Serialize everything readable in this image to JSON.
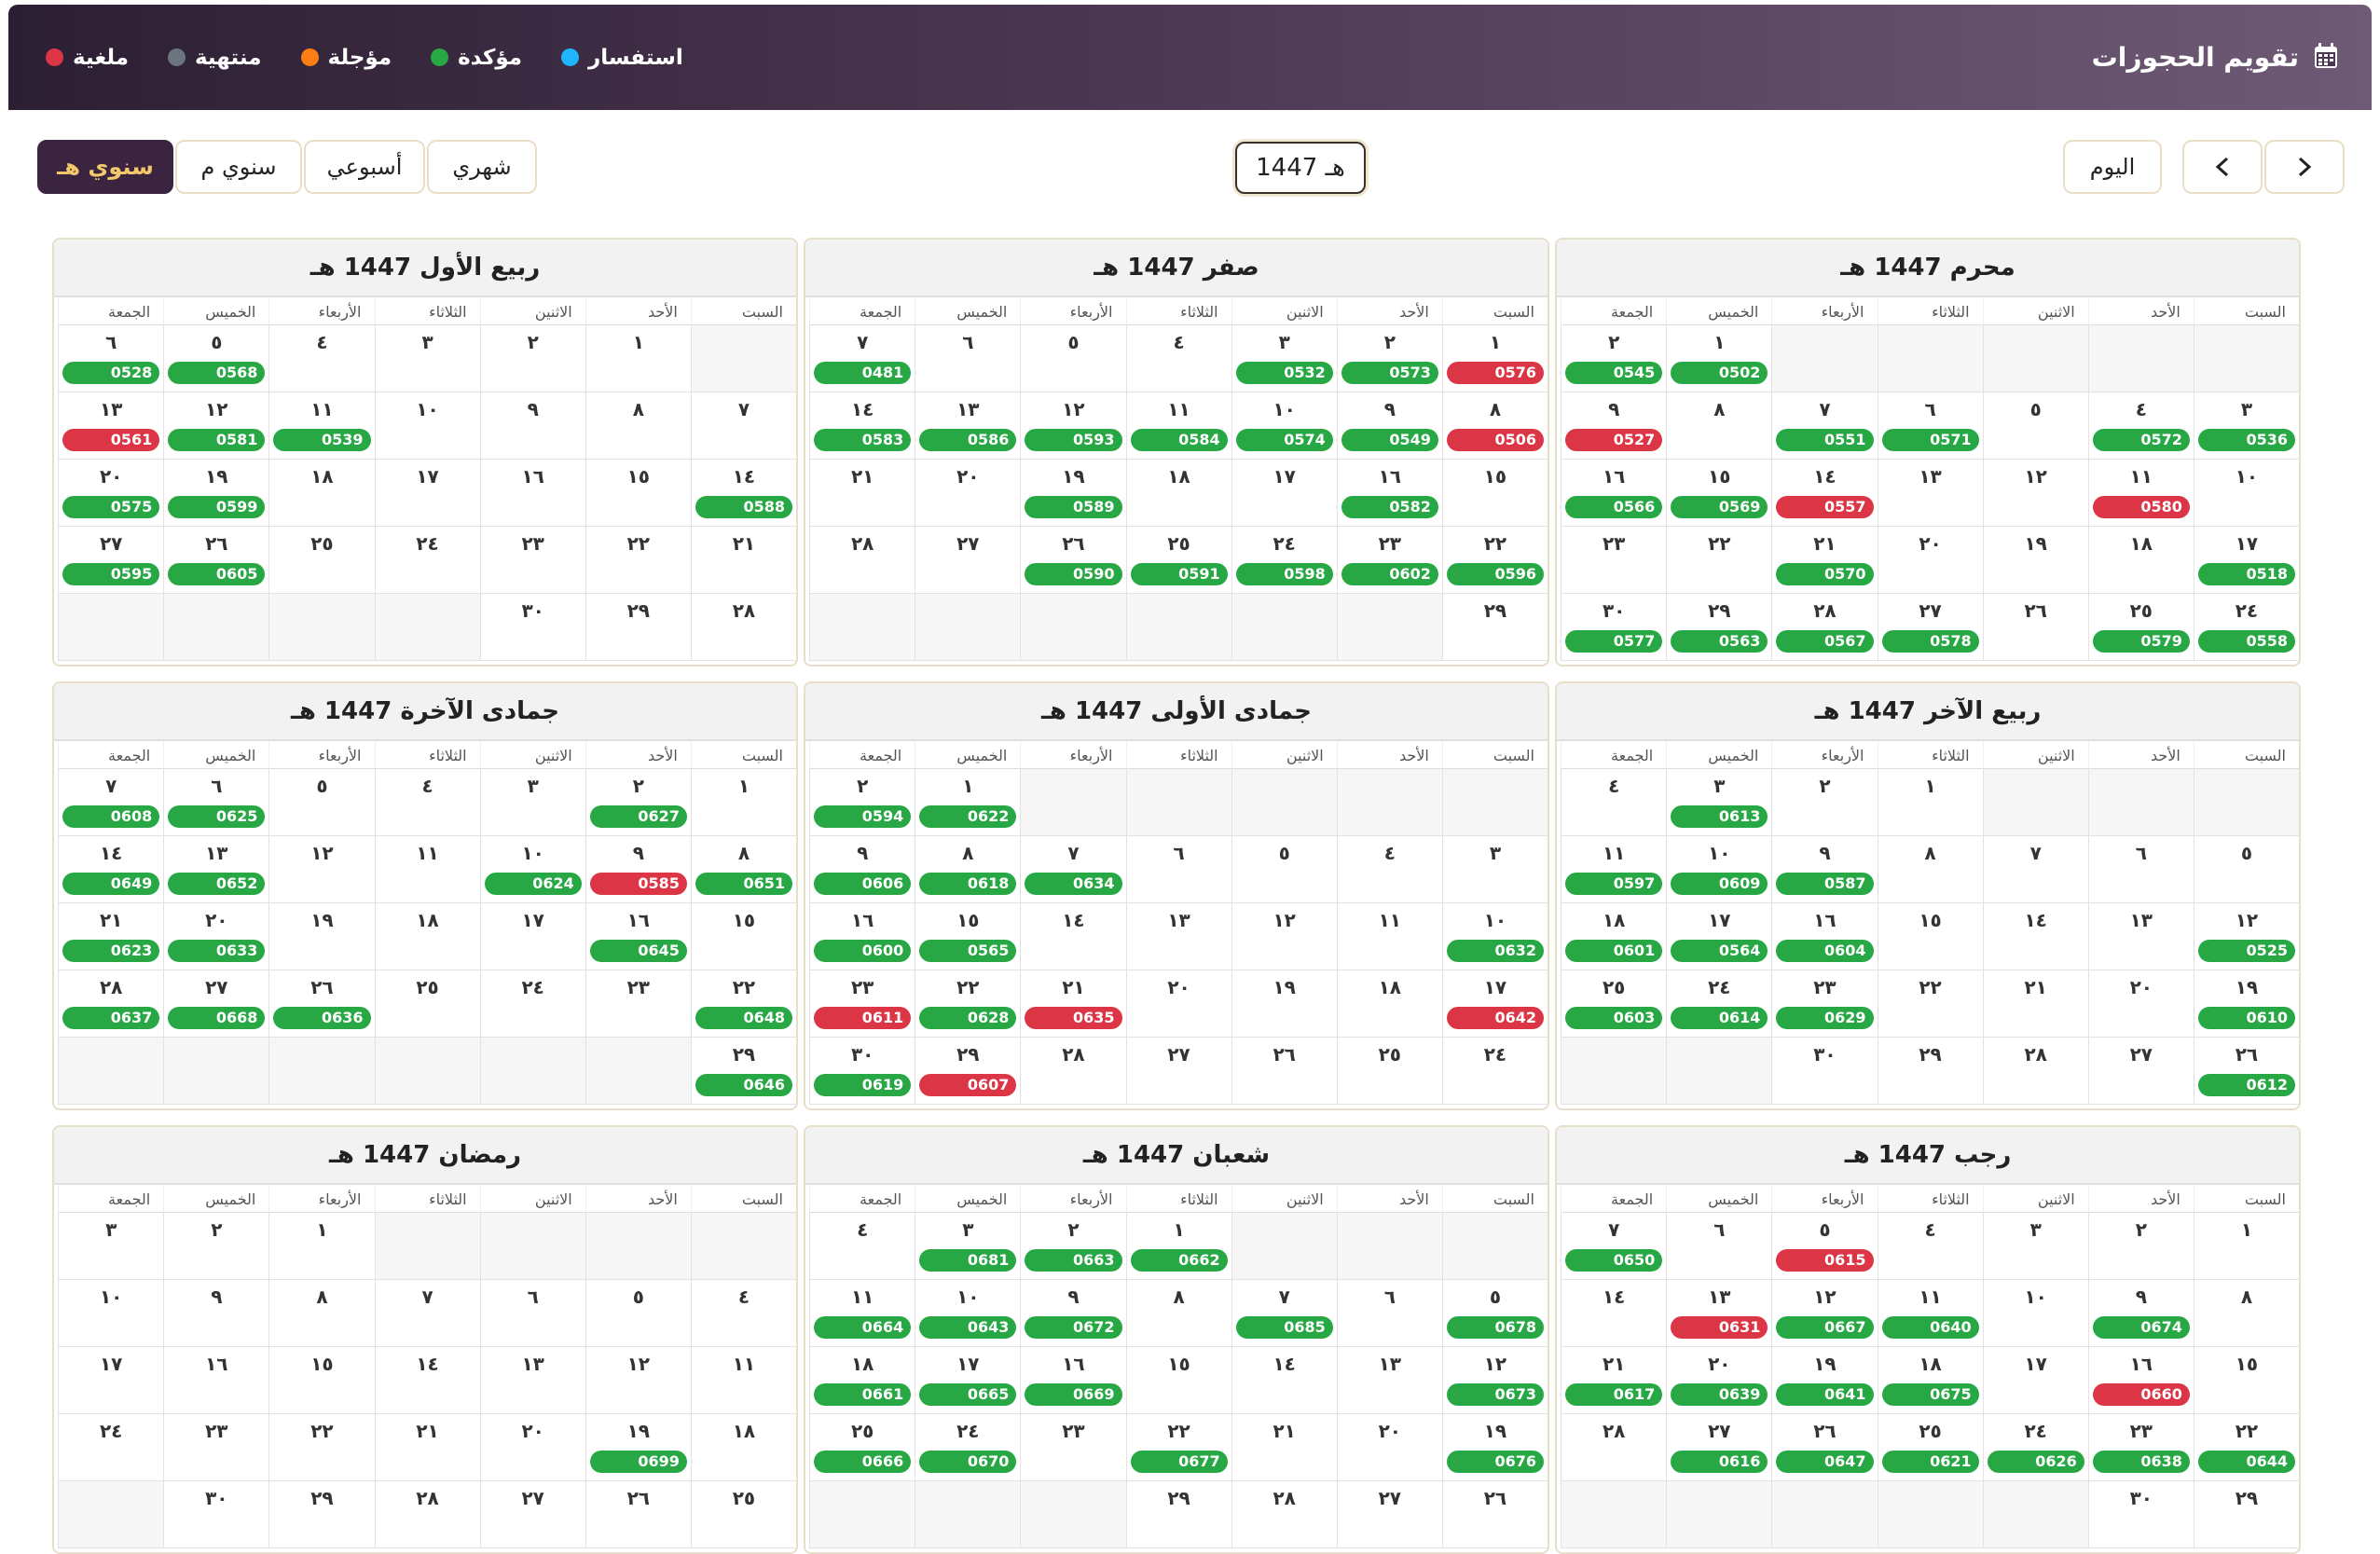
{
  "header": {
    "title": "تقويم الحجوزات",
    "icon": "calendar-icon",
    "legend": [
      {
        "label": "استفسار",
        "color": "#1fb6ff"
      },
      {
        "label": "مؤكدة",
        "color": "#28a745"
      },
      {
        "label": "مؤجلة",
        "color": "#fd7e14"
      },
      {
        "label": "منتهية",
        "color": "#6c757d"
      },
      {
        "label": "ملغية",
        "color": "#dc3545"
      }
    ]
  },
  "toolbar": {
    "next_icon": "chevron-right-icon",
    "prev_icon": "chevron-left-icon",
    "today_label": "اليوم",
    "current_year": "1447 هـ",
    "views": [
      "شهري",
      "أسبوعي",
      "سنوي م",
      "سنوي هـ"
    ],
    "active_view": "سنوي هـ"
  },
  "weekdays": [
    "السبت",
    "الأحد",
    "الاثنين",
    "الثلاثاء",
    "الأربعاء",
    "الخميس",
    "الجمعة"
  ],
  "colors": {
    "confirmed": "#27a844",
    "cancelled": "#dc3545"
  },
  "months": [
    {
      "title": "محرم 1447 هـ",
      "start": 5,
      "weeks_count": 5,
      "days": [
        "١",
        "٢",
        "٣",
        "٤",
        "٥",
        "٦",
        "٧",
        "٨",
        "٩",
        "١٠",
        "١١",
        "١٢",
        "١٣",
        "١٤",
        "١٥",
        "١٦",
        "١٧",
        "١٨",
        "١٩",
        "٢٠",
        "٢١",
        "٢٢",
        "٢٣",
        "٢٤",
        "٢٥",
        "٢٦",
        "٢٧",
        "٢٨",
        "٢٩",
        "٣٠"
      ],
      "bookings": {
        "1": [
          "0502",
          "g"
        ],
        "2": [
          "0545",
          "g"
        ],
        "3": [
          "0536",
          "g"
        ],
        "4": [
          "0572",
          "g"
        ],
        "6": [
          "0571",
          "g"
        ],
        "7": [
          "0551",
          "g"
        ],
        "9": [
          "0527",
          "r"
        ],
        "11": [
          "0580",
          "r"
        ],
        "14": [
          "0557",
          "r"
        ],
        "15": [
          "0569",
          "g"
        ],
        "16": [
          "0566",
          "g"
        ],
        "17": [
          "0518",
          "g"
        ],
        "21": [
          "0570",
          "g"
        ],
        "24": [
          "0558",
          "g"
        ],
        "25": [
          "0579",
          "g"
        ],
        "27": [
          "0578",
          "g"
        ],
        "28": [
          "0567",
          "g"
        ],
        "29": [
          "0563",
          "g"
        ],
        "30": [
          "0577",
          "g"
        ]
      }
    },
    {
      "title": "صفر 1447 هـ",
      "start": 0,
      "weeks_count": 5,
      "days": [
        "١",
        "٢",
        "٣",
        "٤",
        "٥",
        "٦",
        "٧",
        "٨",
        "٩",
        "١٠",
        "١١",
        "١٢",
        "١٣",
        "١٤",
        "١٥",
        "١٦",
        "١٧",
        "١٨",
        "١٩",
        "٢٠",
        "٢١",
        "٢٢",
        "٢٣",
        "٢٤",
        "٢٥",
        "٢٦",
        "٢٧",
        "٢٨",
        "٢٩"
      ],
      "bookings": {
        "1": [
          "0576",
          "r"
        ],
        "2": [
          "0573",
          "g"
        ],
        "3": [
          "0532",
          "g"
        ],
        "7": [
          "0481",
          "g"
        ],
        "8": [
          "0506",
          "r"
        ],
        "9": [
          "0549",
          "g"
        ],
        "10": [
          "0574",
          "g"
        ],
        "11": [
          "0584",
          "g"
        ],
        "12": [
          "0593",
          "g"
        ],
        "13": [
          "0586",
          "g"
        ],
        "14": [
          "0583",
          "g"
        ],
        "16": [
          "0582",
          "g"
        ],
        "19": [
          "0589",
          "g"
        ],
        "22": [
          "0596",
          "g"
        ],
        "23": [
          "0602",
          "g"
        ],
        "24": [
          "0598",
          "g"
        ],
        "25": [
          "0591",
          "g"
        ],
        "26": [
          "0590",
          "g"
        ]
      }
    },
    {
      "title": "ربيع الأول 1447 هـ",
      "start": 1,
      "weeks_count": 5,
      "days": [
        "١",
        "٢",
        "٣",
        "٤",
        "٥",
        "٦",
        "٧",
        "٨",
        "٩",
        "١٠",
        "١١",
        "١٢",
        "١٣",
        "١٤",
        "١٥",
        "١٦",
        "١٧",
        "١٨",
        "١٩",
        "٢٠",
        "٢١",
        "٢٢",
        "٢٣",
        "٢٤",
        "٢٥",
        "٢٦",
        "٢٧",
        "٢٨",
        "٢٩",
        "٣٠"
      ],
      "bookings": {
        "5": [
          "0568",
          "g"
        ],
        "6": [
          "0528",
          "g"
        ],
        "11": [
          "0539",
          "g"
        ],
        "12": [
          "0581",
          "g"
        ],
        "13": [
          "0561",
          "r"
        ],
        "14": [
          "0588",
          "g"
        ],
        "19": [
          "0599",
          "g"
        ],
        "20": [
          "0575",
          "g"
        ],
        "26": [
          "0605",
          "g"
        ],
        "27": [
          "0595",
          "g"
        ]
      }
    },
    {
      "title": "ربيع الآخر 1447 هـ",
      "start": 3,
      "weeks_count": 5,
      "days": [
        "١",
        "٢",
        "٣",
        "٤",
        "٥",
        "٦",
        "٧",
        "٨",
        "٩",
        "١٠",
        "١١",
        "١٢",
        "١٣",
        "١٤",
        "١٥",
        "١٦",
        "١٧",
        "١٨",
        "١٩",
        "٢٠",
        "٢١",
        "٢٢",
        "٢٣",
        "٢٤",
        "٢٥",
        "٢٦",
        "٢٧",
        "٢٨",
        "٢٩",
        "٣٠"
      ],
      "bookings": {
        "3": [
          "0613",
          "g"
        ],
        "9": [
          "0587",
          "g"
        ],
        "10": [
          "0609",
          "g"
        ],
        "11": [
          "0597",
          "g"
        ],
        "12": [
          "0525",
          "g"
        ],
        "16": [
          "0604",
          "g"
        ],
        "17": [
          "0564",
          "g"
        ],
        "18": [
          "0601",
          "g"
        ],
        "19": [
          "0610",
          "g"
        ],
        "23": [
          "0629",
          "g"
        ],
        "24": [
          "0614",
          "g"
        ],
        "25": [
          "0603",
          "g"
        ],
        "26": [
          "0612",
          "g"
        ]
      }
    },
    {
      "title": "جمادى الأولى 1447 هـ",
      "start": 5,
      "weeks_count": 5,
      "days": [
        "١",
        "٢",
        "٣",
        "٤",
        "٥",
        "٦",
        "٧",
        "٨",
        "٩",
        "١٠",
        "١١",
        "١٢",
        "١٣",
        "١٤",
        "١٥",
        "١٦",
        "١٧",
        "١٨",
        "١٩",
        "٢٠",
        "٢١",
        "٢٢",
        "٢٣",
        "٢٤",
        "٢٥",
        "٢٦",
        "٢٧",
        "٢٨",
        "٢٩",
        "٣٠"
      ],
      "bookings": {
        "1": [
          "0622",
          "g"
        ],
        "2": [
          "0594",
          "g"
        ],
        "7": [
          "0634",
          "g"
        ],
        "8": [
          "0618",
          "g"
        ],
        "9": [
          "0606",
          "g"
        ],
        "10": [
          "0632",
          "g"
        ],
        "15": [
          "0565",
          "g"
        ],
        "16": [
          "0600",
          "g"
        ],
        "17": [
          "0642",
          "r"
        ],
        "21": [
          "0635",
          "r"
        ],
        "22": [
          "0628",
          "g"
        ],
        "23": [
          "0611",
          "r"
        ],
        "29": [
          "0607",
          "r"
        ],
        "30": [
          "0619",
          "g"
        ]
      }
    },
    {
      "title": "جمادى الآخرة 1447 هـ",
      "start": 0,
      "weeks_count": 5,
      "days": [
        "١",
        "٢",
        "٣",
        "٤",
        "٥",
        "٦",
        "٧",
        "٨",
        "٩",
        "١٠",
        "١١",
        "١٢",
        "١٣",
        "١٤",
        "١٥",
        "١٦",
        "١٧",
        "١٨",
        "١٩",
        "٢٠",
        "٢١",
        "٢٢",
        "٢٣",
        "٢٤",
        "٢٥",
        "٢٦",
        "٢٧",
        "٢٨",
        "٢٩"
      ],
      "bookings": {
        "2": [
          "0627",
          "g"
        ],
        "6": [
          "0625",
          "g"
        ],
        "7": [
          "0608",
          "g"
        ],
        "8": [
          "0651",
          "g"
        ],
        "9": [
          "0585",
          "r"
        ],
        "10": [
          "0624",
          "g"
        ],
        "13": [
          "0652",
          "g"
        ],
        "14": [
          "0649",
          "g"
        ],
        "16": [
          "0645",
          "g"
        ],
        "20": [
          "0633",
          "g"
        ],
        "21": [
          "0623",
          "g"
        ],
        "22": [
          "0648",
          "g"
        ],
        "26": [
          "0636",
          "g"
        ],
        "27": [
          "0668",
          "g"
        ],
        "28": [
          "0637",
          "g"
        ],
        "29": [
          "0646",
          "g"
        ]
      }
    },
    {
      "title": "رجب 1447 هـ",
      "start": 0,
      "weeks_count": 5,
      "days": [
        "١",
        "٢",
        "٣",
        "٤",
        "٥",
        "٦",
        "٧",
        "٨",
        "٩",
        "١٠",
        "١١",
        "١٢",
        "١٣",
        "١٤",
        "١٥",
        "١٦",
        "١٧",
        "١٨",
        "١٩",
        "٢٠",
        "٢١",
        "٢٢",
        "٢٣",
        "٢٤",
        "٢٥",
        "٢٦",
        "٢٧",
        "٢٨",
        "٢٩",
        "٣٠"
      ],
      "bookings": {
        "5": [
          "0615",
          "r"
        ],
        "7": [
          "0650",
          "g"
        ],
        "9": [
          "0674",
          "g"
        ],
        "11": [
          "0640",
          "g"
        ],
        "12": [
          "0667",
          "g"
        ],
        "13": [
          "0631",
          "r"
        ],
        "16": [
          "0660",
          "r"
        ],
        "18": [
          "0675",
          "g"
        ],
        "19": [
          "0641",
          "g"
        ],
        "20": [
          "0639",
          "g"
        ],
        "21": [
          "0617",
          "g"
        ],
        "22": [
          "0644",
          "g"
        ],
        "23": [
          "0638",
          "g"
        ],
        "24": [
          "0626",
          "g"
        ],
        "25": [
          "0621",
          "g"
        ],
        "26": [
          "0647",
          "g"
        ],
        "27": [
          "0616",
          "g"
        ]
      }
    },
    {
      "title": "شعبان 1447 هـ",
      "start": 3,
      "weeks_count": 5,
      "days": [
        "١",
        "٢",
        "٣",
        "٤",
        "٥",
        "٦",
        "٧",
        "٨",
        "٩",
        "١٠",
        "١١",
        "١٢",
        "١٣",
        "١٤",
        "١٥",
        "١٦",
        "١٧",
        "١٨",
        "١٩",
        "٢٠",
        "٢١",
        "٢٢",
        "٢٣",
        "٢٤",
        "٢٥",
        "٢٦",
        "٢٧",
        "٢٨",
        "٢٩"
      ],
      "bookings": {
        "1": [
          "0662",
          "g"
        ],
        "2": [
          "0663",
          "g"
        ],
        "3": [
          "0681",
          "g"
        ],
        "5": [
          "0678",
          "g"
        ],
        "7": [
          "0685",
          "g"
        ],
        "9": [
          "0672",
          "g"
        ],
        "10": [
          "0643",
          "g"
        ],
        "11": [
          "0664",
          "g"
        ],
        "12": [
          "0673",
          "g"
        ],
        "16": [
          "0669",
          "g"
        ],
        "17": [
          "0665",
          "g"
        ],
        "18": [
          "0661",
          "g"
        ],
        "19": [
          "0676",
          "g"
        ],
        "22": [
          "0677",
          "g"
        ],
        "24": [
          "0670",
          "g"
        ],
        "25": [
          "0666",
          "g"
        ]
      }
    },
    {
      "title": "رمضان 1447 هـ",
      "start": 4,
      "weeks_count": 5,
      "days": [
        "١",
        "٢",
        "٣",
        "٤",
        "٥",
        "٦",
        "٧",
        "٨",
        "٩",
        "١٠",
        "١١",
        "١٢",
        "١٣",
        "١٤",
        "١٥",
        "١٦",
        "١٧",
        "١٨",
        "١٩",
        "٢٠",
        "٢١",
        "٢٢",
        "٢٣",
        "٢٤",
        "٢٥",
        "٢٦",
        "٢٧",
        "٢٨",
        "٢٩",
        "٣٠"
      ],
      "bookings": {
        "19": [
          "0699",
          "g"
        ]
      }
    }
  ]
}
